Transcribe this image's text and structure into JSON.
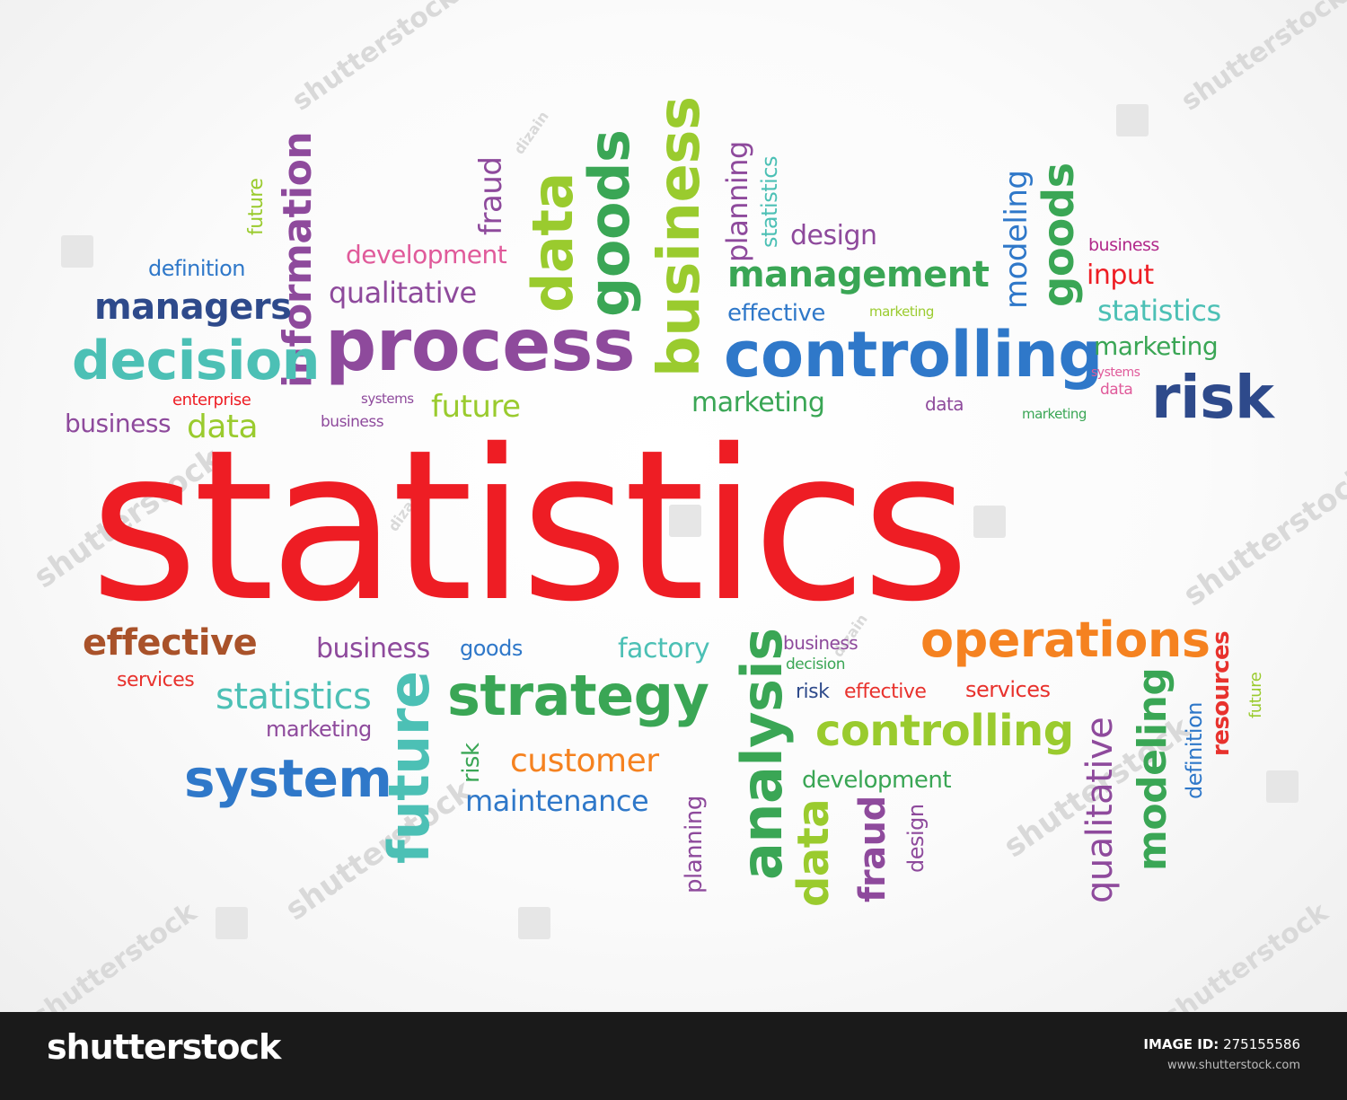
{
  "main_word": "statistics",
  "words": {
    "w1": "information",
    "w2": "future",
    "w3": "development",
    "w4": "fraud",
    "w5": "data",
    "w6": "goods",
    "w7": "business",
    "w8": "planning",
    "w9": "statistics",
    "w10": "design",
    "w11": "modeling",
    "w12": "goods",
    "w13": "business",
    "w14": "definition",
    "w15": "managers",
    "w16": "qualitative",
    "w17": "management",
    "w18": "input",
    "w19": "process",
    "w20": "effective",
    "w21": "marketing",
    "w22": "statistics",
    "w23": "decision",
    "w24": "controlling",
    "w25": "marketing",
    "w26": "systems",
    "w27": "enterprise",
    "w28": "systems",
    "w29": "future",
    "w30": "marketing",
    "w31": "data",
    "w32": "risk",
    "w33": "business",
    "w34": "data",
    "w35": "business",
    "w36": "marketing",
    "w37": "data",
    "w38": "effective",
    "w39": "business",
    "w40": "goods",
    "w41": "factory",
    "w42": "business",
    "w43": "operations",
    "w44": "services",
    "w45": "decision",
    "w46": "resources",
    "w47": "statistics",
    "w48": "strategy",
    "w49": "analysis",
    "w50": "risk",
    "w51": "effective",
    "w52": "services",
    "w53": "future",
    "w54": "marketing",
    "w55": "future",
    "w56": "controlling",
    "w57": "qualitative",
    "w58": "modeling",
    "w59": "definition",
    "w60": "system",
    "w61": "customer",
    "w62": "risk",
    "w63": "development",
    "w64": "maintenance",
    "w65": "planning",
    "w66": "data",
    "w67": "fraud",
    "w68": "design"
  },
  "watermark": {
    "brand": "shutterstock",
    "contributor": "dizain"
  },
  "footer": {
    "brand": "shutterstock",
    "image_id_label": "IMAGE ID:",
    "image_id": "275155586",
    "site": "www.shutterstock.com"
  },
  "colors": {
    "main": "#ee1d24",
    "purple": "#8e4a9c",
    "green": "#3aa655",
    "teal": "#4cc0b5",
    "blue": "#2f78c9",
    "navy": "#2e4a8b",
    "lime": "#9acb2e",
    "orange": "#f58220",
    "red": "#e8322d",
    "pink": "#e05a9a",
    "brown": "#a9522a",
    "magenta": "#b1298a"
  }
}
